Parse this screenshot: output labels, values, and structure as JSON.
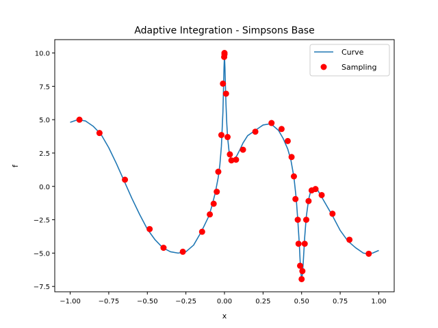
{
  "chart_data": {
    "type": "line",
    "title": "Adaptive Integration - Simpsons Base",
    "xlabel": "x",
    "ylabel": "f",
    "xlim": [
      -1.1,
      1.1
    ],
    "ylim": [
      -7.9,
      11.0
    ],
    "xticks": [
      -1.0,
      -0.75,
      -0.5,
      -0.25,
      0.0,
      0.25,
      0.5,
      0.75,
      1.0
    ],
    "xtick_labels": [
      "−1.00",
      "−0.75",
      "−0.50",
      "−0.25",
      "0.00",
      "0.25",
      "0.50",
      "0.75",
      "1.00"
    ],
    "yticks": [
      -7.5,
      -5.0,
      -2.5,
      0.0,
      2.5,
      5.0,
      7.5,
      10.0
    ],
    "ytick_labels": [
      "−7.5",
      "−5.0",
      "−2.5",
      "0.0",
      "2.5",
      "5.0",
      "7.5",
      "10.0"
    ],
    "grid": false,
    "legend_position": "top-right",
    "series": [
      {
        "name": "Curve",
        "kind": "line",
        "color": "#1f77b4",
        "x": [
          -1.0,
          -0.95,
          -0.9,
          -0.85,
          -0.8,
          -0.75,
          -0.7,
          -0.65,
          -0.6,
          -0.55,
          -0.5,
          -0.45,
          -0.4,
          -0.35,
          -0.3,
          -0.25,
          -0.2,
          -0.15,
          -0.1,
          -0.08,
          -0.06,
          -0.04,
          -0.03,
          -0.02,
          -0.015,
          -0.01,
          -0.006,
          -0.003,
          0.0,
          0.003,
          0.006,
          0.01,
          0.015,
          0.02,
          0.03,
          0.04,
          0.05,
          0.06,
          0.08,
          0.1,
          0.12,
          0.15,
          0.2,
          0.25,
          0.3,
          0.35,
          0.38,
          0.41,
          0.43,
          0.45,
          0.465,
          0.475,
          0.485,
          0.49,
          0.495,
          0.5,
          0.505,
          0.51,
          0.515,
          0.52,
          0.53,
          0.545,
          0.56,
          0.58,
          0.6,
          0.63,
          0.66,
          0.7,
          0.75,
          0.8,
          0.85,
          0.9,
          0.93,
          0.96,
          1.0
        ],
        "y": [
          4.8,
          5.0,
          4.9,
          4.5,
          3.9,
          2.9,
          1.7,
          0.4,
          -0.9,
          -2.1,
          -3.2,
          -4.0,
          -4.6,
          -4.9,
          -5.0,
          -4.9,
          -4.4,
          -3.4,
          -2.2,
          -1.4,
          -0.5,
          0.7,
          1.6,
          3.0,
          4.3,
          5.6,
          7.5,
          8.9,
          9.8,
          8.9,
          7.6,
          6.1,
          4.7,
          3.7,
          2.6,
          2.1,
          1.95,
          2.0,
          2.3,
          2.75,
          3.25,
          3.8,
          4.2,
          4.6,
          4.7,
          4.2,
          3.6,
          2.8,
          2.0,
          0.7,
          -0.9,
          -2.5,
          -4.3,
          -5.5,
          -6.5,
          -6.9,
          -6.6,
          -5.8,
          -4.8,
          -3.8,
          -2.3,
          -1.0,
          -0.3,
          -0.1,
          -0.2,
          -0.8,
          -1.4,
          -2.2,
          -3.3,
          -4.1,
          -4.6,
          -5.0,
          -5.05,
          -5.0,
          -4.8
        ]
      },
      {
        "name": "Sampling",
        "kind": "scatter",
        "color": "#ff0000",
        "x": [
          -0.94,
          -0.81,
          -0.645,
          -0.485,
          -0.395,
          -0.27,
          -0.145,
          -0.095,
          -0.07,
          -0.05,
          -0.04,
          -0.02,
          -0.01,
          -0.002,
          0.0,
          0.0,
          0.01,
          0.02,
          0.035,
          0.045,
          0.075,
          0.12,
          0.2,
          0.305,
          0.37,
          0.41,
          0.435,
          0.45,
          0.46,
          0.475,
          0.48,
          0.49,
          0.5,
          0.505,
          0.52,
          0.53,
          0.545,
          0.565,
          0.59,
          0.63,
          0.7,
          0.81,
          0.935
        ],
        "y": [
          5.0,
          4.0,
          0.5,
          -3.2,
          -4.6,
          -4.9,
          -3.4,
          -2.1,
          -1.3,
          -0.4,
          1.1,
          3.85,
          7.7,
          9.7,
          10.0,
          9.9,
          6.95,
          3.7,
          2.4,
          1.95,
          2.0,
          2.75,
          4.1,
          4.75,
          4.3,
          3.4,
          2.2,
          0.75,
          -0.95,
          -2.5,
          -4.3,
          -5.95,
          -6.95,
          -6.35,
          -4.3,
          -2.5,
          -1.1,
          -0.3,
          -0.2,
          -0.65,
          -2.05,
          -4.0,
          -5.05
        ]
      }
    ]
  }
}
